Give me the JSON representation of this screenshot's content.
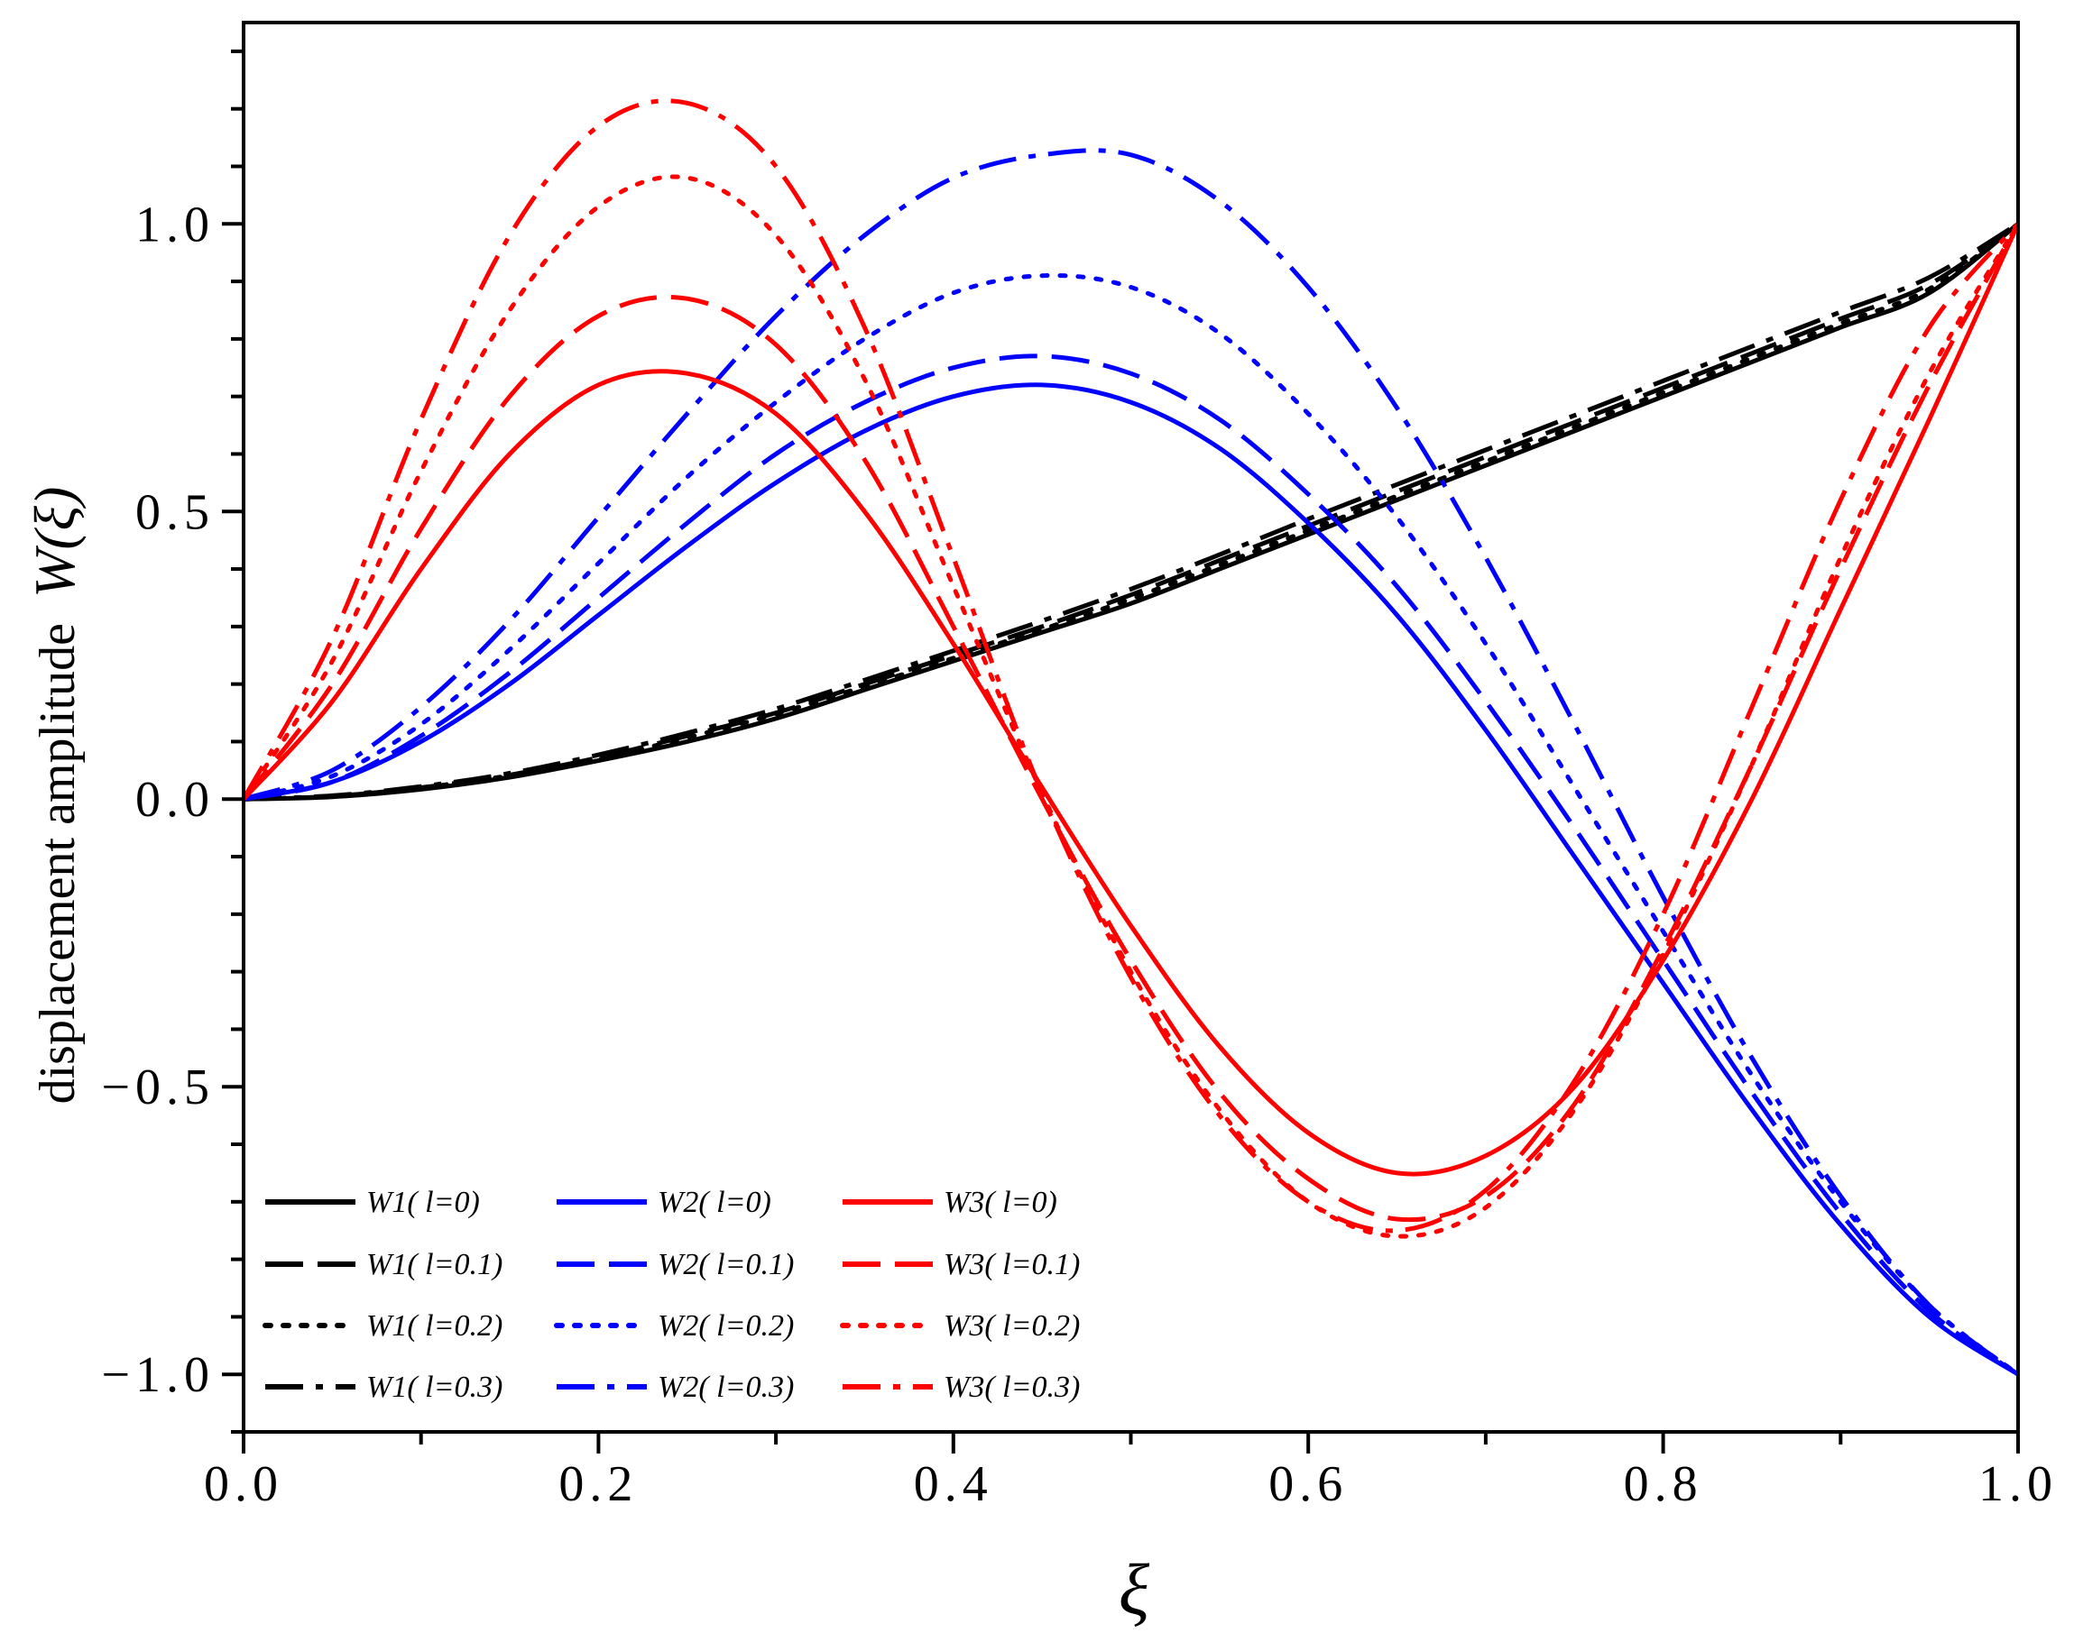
{
  "chart_data": {
    "type": "line",
    "title": "",
    "xlabel": "ξ",
    "ylabel_text": "displacement amplitude",
    "ylabel_symbol": "W(ξ)",
    "xlim": [
      0.0,
      1.0
    ],
    "ylim": [
      -1.1,
      1.35
    ],
    "xticks": [
      0.0,
      0.2,
      0.4,
      0.6,
      0.8,
      1.0
    ],
    "xtick_labels": [
      "0.0",
      "0.2",
      "0.4",
      "0.6",
      "0.8",
      "1.0"
    ],
    "yticks": [
      -1.0,
      -0.5,
      0.0,
      0.5,
      1.0
    ],
    "ytick_labels": [
      "−1.0",
      "−0.5",
      "0.0",
      "0.5",
      "1.0"
    ],
    "grid": false,
    "legend_position": "bottom-left",
    "colors": {
      "W1": "#000000",
      "W2": "#0000ff",
      "W3": "#ff0000"
    },
    "x": [
      0.0,
      0.05,
      0.1,
      0.15,
      0.2,
      0.25,
      0.3,
      0.35,
      0.4,
      0.45,
      0.5,
      0.55,
      0.6,
      0.65,
      0.7,
      0.75,
      0.8,
      0.85,
      0.9,
      0.95,
      1.0
    ],
    "series": [
      {
        "name": "W1( l=0)",
        "mode": "W1",
        "l": "0",
        "dash": "solid",
        "values": [
          0.0,
          0.004,
          0.017,
          0.038,
          0.067,
          0.1,
          0.14,
          0.19,
          0.24,
          0.29,
          0.34,
          0.4,
          0.46,
          0.52,
          0.58,
          0.64,
          0.7,
          0.76,
          0.82,
          0.88,
          1.0
        ]
      },
      {
        "name": "W1( l=0.1)",
        "mode": "W1",
        "l": "0.1",
        "dash": "dash",
        "values": [
          0.0,
          0.005,
          0.02,
          0.042,
          0.072,
          0.11,
          0.15,
          0.2,
          0.25,
          0.3,
          0.355,
          0.415,
          0.475,
          0.535,
          0.595,
          0.655,
          0.715,
          0.775,
          0.835,
          0.895,
          1.0
        ]
      },
      {
        "name": "W1( l=0.2)",
        "mode": "W1",
        "l": "0.2",
        "dash": "dot",
        "values": [
          0.0,
          0.005,
          0.02,
          0.041,
          0.07,
          0.107,
          0.148,
          0.196,
          0.245,
          0.295,
          0.348,
          0.407,
          0.467,
          0.527,
          0.587,
          0.647,
          0.707,
          0.767,
          0.827,
          0.887,
          1.0
        ]
      },
      {
        "name": "W1( l=0.3)",
        "mode": "W1",
        "l": "0.3",
        "dash": "dashdot",
        "values": [
          0.0,
          0.006,
          0.022,
          0.045,
          0.077,
          0.115,
          0.157,
          0.207,
          0.258,
          0.31,
          0.365,
          0.425,
          0.487,
          0.547,
          0.607,
          0.667,
          0.727,
          0.787,
          0.847,
          0.907,
          1.0
        ]
      },
      {
        "name": "W2( l=0)",
        "mode": "W2",
        "l": "0",
        "dash": "solid",
        "values": [
          0.0,
          0.03,
          0.1,
          0.2,
          0.32,
          0.44,
          0.55,
          0.64,
          0.7,
          0.72,
          0.69,
          0.61,
          0.48,
          0.32,
          0.12,
          -0.1,
          -0.32,
          -0.54,
          -0.74,
          -0.9,
          -1.0
        ]
      },
      {
        "name": "W2( l=0.1)",
        "mode": "W2",
        "l": "0.1",
        "dash": "dash",
        "values": [
          0.0,
          0.03,
          0.11,
          0.22,
          0.35,
          0.48,
          0.6,
          0.69,
          0.75,
          0.77,
          0.74,
          0.66,
          0.53,
          0.37,
          0.17,
          -0.05,
          -0.28,
          -0.51,
          -0.72,
          -0.89,
          -1.0
        ]
      },
      {
        "name": "W2( l=0.2)",
        "mode": "W2",
        "l": "0.2",
        "dash": "dot",
        "values": [
          0.0,
          0.04,
          0.13,
          0.26,
          0.41,
          0.56,
          0.69,
          0.8,
          0.88,
          0.91,
          0.89,
          0.81,
          0.67,
          0.49,
          0.27,
          0.02,
          -0.23,
          -0.48,
          -0.7,
          -0.88,
          -1.0
        ]
      },
      {
        "name": "W2( l=0.3)",
        "mode": "W2",
        "l": "0.3",
        "dash": "dashdot",
        "values": [
          0.0,
          0.05,
          0.16,
          0.31,
          0.49,
          0.67,
          0.84,
          0.98,
          1.08,
          1.12,
          1.12,
          1.04,
          0.89,
          0.68,
          0.42,
          0.13,
          -0.17,
          -0.45,
          -0.69,
          -0.88,
          -1.0
        ]
      },
      {
        "name": "W3( l=0)",
        "mode": "W3",
        "l": "0",
        "dash": "solid",
        "values": [
          0.0,
          0.17,
          0.4,
          0.6,
          0.72,
          0.74,
          0.67,
          0.5,
          0.27,
          0.02,
          -0.22,
          -0.43,
          -0.58,
          -0.65,
          -0.62,
          -0.5,
          -0.28,
          0.0,
          0.33,
          0.66,
          1.0
        ]
      },
      {
        "name": "W3( l=0.1)",
        "mode": "W3",
        "l": "0.1",
        "dash": "dash",
        "values": [
          0.0,
          0.2,
          0.47,
          0.7,
          0.84,
          0.87,
          0.79,
          0.59,
          0.3,
          0.0,
          -0.28,
          -0.51,
          -0.66,
          -0.73,
          -0.69,
          -0.53,
          -0.26,
          0.06,
          0.4,
          0.72,
          1.0
        ]
      },
      {
        "name": "W3( l=0.2)",
        "mode": "W3",
        "l": "0.2",
        "dash": "dot",
        "values": [
          0.0,
          0.24,
          0.57,
          0.85,
          1.03,
          1.08,
          0.98,
          0.73,
          0.37,
          0.01,
          -0.3,
          -0.54,
          -0.7,
          -0.76,
          -0.71,
          -0.54,
          -0.27,
          0.06,
          0.42,
          0.74,
          1.0
        ]
      },
      {
        "name": "W3( l=0.3)",
        "mode": "W3",
        "l": "0.3",
        "dash": "dashdot",
        "values": [
          0.0,
          0.28,
          0.66,
          0.98,
          1.17,
          1.21,
          1.1,
          0.82,
          0.42,
          0.01,
          -0.31,
          -0.55,
          -0.7,
          -0.75,
          -0.68,
          -0.49,
          -0.2,
          0.16,
          0.52,
          0.82,
          1.0
        ]
      }
    ]
  }
}
